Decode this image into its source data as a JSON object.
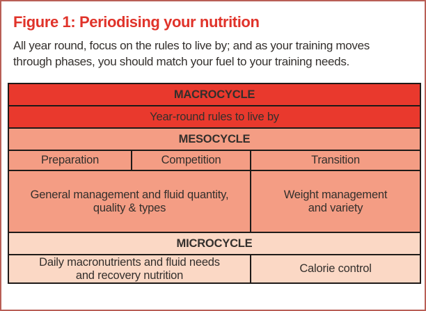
{
  "figure": {
    "title": "Figure 1: Periodising your nutrition",
    "subtitle": "All year round, focus on the rules to live by; and as your training moves\nthrough phases, you should match your fuel to your training needs."
  },
  "colors": {
    "red": "#e9392d",
    "salmon": "#f49d84",
    "light_pink": "#fbd8c5",
    "table_border": "#1e1a18",
    "outer_border": "#b95e56",
    "text_dark": "#332f2c",
    "text_white": "#ffffff",
    "title_red": "#e0332a"
  },
  "table": {
    "rows": [
      {
        "label": "MACROCYCLE"
      },
      {
        "label": "Year-round rules to live by"
      },
      {
        "label": "MESOCYCLE"
      },
      {
        "cells": [
          "Preparation",
          "Competition",
          "Transition"
        ]
      },
      {
        "cells": [
          "General management and fluid quantity,\nquality & types",
          "Weight management\nand variety"
        ]
      },
      {
        "label": "MICROCYCLE"
      },
      {
        "cells": [
          "Daily macronutrients and fluid needs\nand recovery nutrition",
          "Calorie control"
        ]
      }
    ]
  }
}
